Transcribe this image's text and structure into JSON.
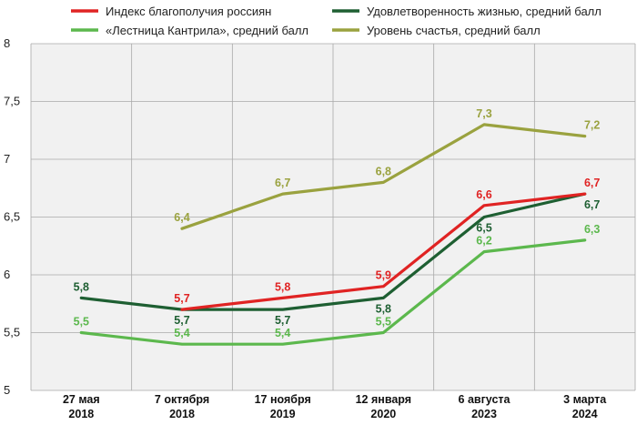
{
  "chart_data": {
    "type": "line",
    "categories": [
      [
        "27 мая",
        "2018"
      ],
      [
        "7 октября",
        "2018"
      ],
      [
        "17 ноября",
        "2019"
      ],
      [
        "12 января",
        "2020"
      ],
      [
        "6 августа",
        "2023"
      ],
      [
        "3 марта",
        "2024"
      ]
    ],
    "ylim": [
      5,
      8
    ],
    "yticks": [
      "5",
      "5,5",
      "6",
      "6,5",
      "7",
      "7,5",
      "8"
    ],
    "grid": true,
    "legend_placement": "top",
    "series": [
      {
        "name": "Индекс благополучия россиян",
        "color": "#e02323",
        "values": [
          null,
          5.7,
          5.8,
          5.9,
          6.6,
          6.7
        ],
        "labels": [
          "",
          "5,7",
          "5,8",
          "5,9",
          "6,6",
          "6,7"
        ]
      },
      {
        "name": "Удовлетворенность жизнью, средний балл",
        "color": "#1e5f32",
        "values": [
          5.8,
          5.7,
          5.7,
          5.8,
          6.5,
          6.7
        ],
        "labels": [
          "5,8",
          "5,7",
          "5,7",
          "5,8",
          "6,5",
          "6,7"
        ]
      },
      {
        "name": "«Лестница Кантрила», средний балл",
        "color": "#5cb84d",
        "values": [
          5.5,
          5.4,
          5.4,
          5.5,
          6.2,
          6.3
        ],
        "labels": [
          "5,5",
          "5,4",
          "5,4",
          "5,5",
          "6,2",
          "6,3"
        ]
      },
      {
        "name": "Уровень счастья, средний балл",
        "color": "#9aa23f",
        "values": [
          null,
          6.4,
          6.7,
          6.8,
          7.3,
          7.2
        ],
        "labels": [
          "",
          "6,4",
          "6,7",
          "6,8",
          "7,3",
          "7,2"
        ]
      }
    ]
  }
}
